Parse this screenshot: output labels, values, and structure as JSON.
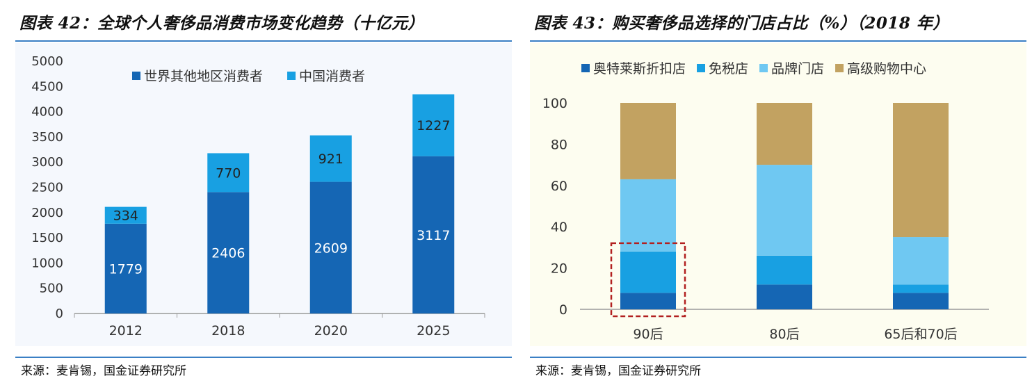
{
  "left": {
    "title": "图表 42：全球个人奢侈品消费市场变化趋势（十亿元）",
    "source": "来源：麦肯锡，国金证券研究所"
  },
  "right": {
    "title": "图表 43：购买奢侈品选择的门店占比（%）（2018 年）",
    "source": "来源：麦肯锡，国金证券研究所"
  },
  "chart_data": [
    {
      "type": "bar",
      "stacked": true,
      "title": "图表 42：全球个人奢侈品消费市场变化趋势（十亿元）",
      "categories": [
        "2012",
        "2018",
        "2020",
        "2025"
      ],
      "series": [
        {
          "name": "世界其他地区消费者",
          "values": [
            1779,
            2406,
            2609,
            3117
          ],
          "color": "#1566b4"
        },
        {
          "name": "中国消费者",
          "values": [
            334,
            770,
            921,
            1227
          ],
          "color": "#18a0e2"
        }
      ],
      "yticks": [
        0,
        500,
        1000,
        1500,
        2000,
        2500,
        3000,
        3500,
        4000,
        4500,
        5000
      ],
      "ylim": [
        0,
        5000
      ],
      "legend": "top-center",
      "grid": false
    },
    {
      "type": "bar",
      "stacked": true,
      "title": "图表 43：购买奢侈品选择的门店占比（%）（2018 年）",
      "categories": [
        "90后",
        "80后",
        "65后和70后"
      ],
      "series": [
        {
          "name": "奥特莱斯折扣店",
          "values": [
            8,
            12,
            8
          ],
          "color": "#1566b4"
        },
        {
          "name": "免税店",
          "values": [
            20,
            14,
            4
          ],
          "color": "#18a0e2"
        },
        {
          "name": "品牌门店",
          "values": [
            35,
            44,
            23
          ],
          "color": "#6fc8f2"
        },
        {
          "name": "高级购物中心",
          "values": [
            37,
            30,
            65
          ],
          "color": "#c2a261"
        }
      ],
      "yticks": [
        0,
        20,
        40,
        60,
        80,
        100
      ],
      "ylim": [
        0,
        100
      ],
      "legend": "top",
      "grid": false,
      "highlight": {
        "category": "90后",
        "series": [
          "奥特莱斯折扣店",
          "免税店"
        ],
        "color": "#b22020"
      }
    }
  ]
}
